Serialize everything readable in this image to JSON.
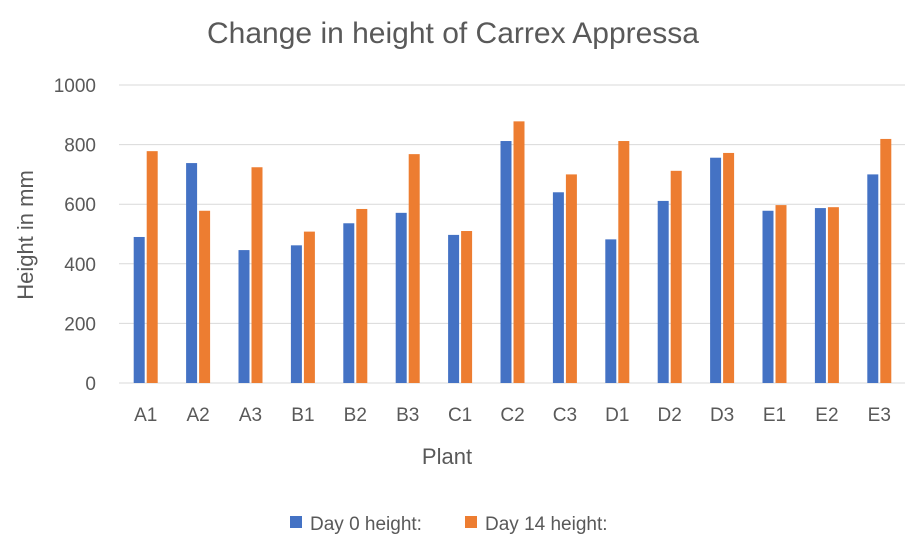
{
  "chart_data": {
    "type": "bar",
    "title": "Change in height of Carrex Appressa",
    "xlabel": "Plant",
    "ylabel": "Height in mm",
    "ylim": [
      0,
      1000
    ],
    "yticks": [
      0,
      200,
      400,
      600,
      800,
      1000
    ],
    "grid": true,
    "legend_position": "bottom",
    "categories": [
      "A1",
      "A2",
      "A3",
      "B1",
      "B2",
      "B3",
      "C1",
      "C2",
      "C3",
      "D1",
      "D2",
      "D3",
      "E1",
      "E2",
      "E3"
    ],
    "series": [
      {
        "name": "Day 0 height:",
        "color": "#4472c4",
        "values": [
          490,
          738,
          446,
          462,
          536,
          571,
          497,
          812,
          640,
          482,
          611,
          756,
          578,
          587,
          700
        ]
      },
      {
        "name": "Day 14 height:",
        "color": "#ed7d31",
        "values": [
          778,
          578,
          724,
          508,
          584,
          768,
          510,
          878,
          700,
          812,
          712,
          772,
          597,
          590,
          819
        ]
      }
    ]
  }
}
